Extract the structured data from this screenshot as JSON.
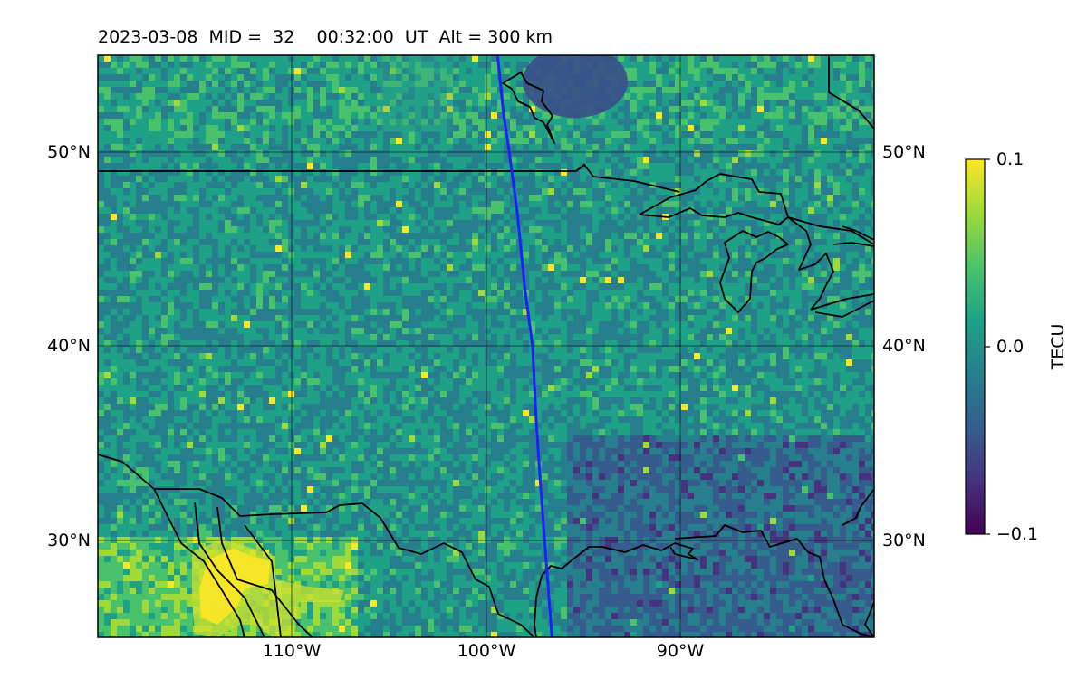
{
  "map": {
    "title": "2023-03-08  MID =  32    00:32:00  UT  Alt = 300 km",
    "region": "North America",
    "lat_range": [
      25,
      55
    ],
    "lon_range": [
      -120,
      -80
    ],
    "lat_ticks": [
      {
        "value": 50,
        "label": "50°N"
      },
      {
        "value": 40,
        "label": "40°N"
      },
      {
        "value": 30,
        "label": "30°N"
      }
    ],
    "lon_ticks": [
      {
        "value": -110,
        "label": "110°W"
      },
      {
        "value": -100,
        "label": "100°W"
      },
      {
        "value": -90,
        "label": "90°W"
      }
    ],
    "track_color": "#1f1fff",
    "track_points": [
      [
        -99.4,
        55
      ],
      [
        -99.1,
        52
      ],
      [
        -98.8,
        50
      ],
      [
        -98.4,
        47
      ],
      [
        -98.0,
        43
      ],
      [
        -97.6,
        40
      ],
      [
        -97.4,
        36
      ],
      [
        -97.2,
        33
      ],
      [
        -96.9,
        29
      ],
      [
        -96.6,
        25
      ]
    ],
    "features": [
      "US-Canada border",
      "Great Lakes",
      "Gulf of Mexico coastline",
      "Hudson Bay",
      "Baja California"
    ]
  },
  "colorbar": {
    "title": "TECU",
    "min_label": "−0.1",
    "mid_label": "0.0",
    "max_label": "0.1",
    "min": -0.1,
    "max": 0.1,
    "colormap": "viridis",
    "colors": [
      "#440154",
      "#46327e",
      "#365c8d",
      "#277f8e",
      "#1fa187",
      "#4ac16d",
      "#a0da39",
      "#fde725"
    ]
  }
}
